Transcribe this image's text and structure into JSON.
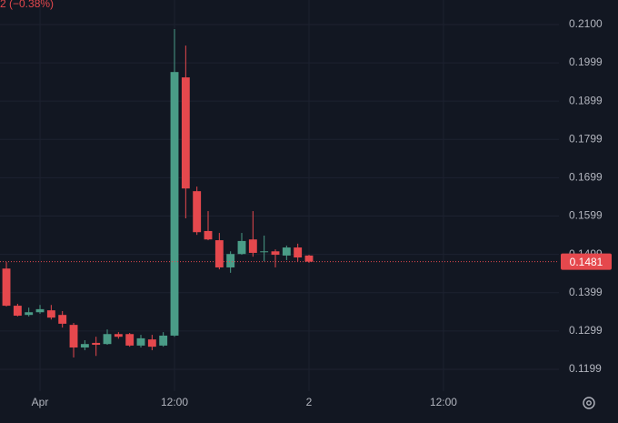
{
  "chart_data": {
    "type": "candlestick",
    "header_change": "2 (−0.38%)",
    "x": [
      -3,
      -2,
      -1,
      0,
      1,
      2,
      3,
      4,
      5,
      6,
      7,
      8,
      9,
      10,
      11,
      12,
      13,
      14,
      15,
      16,
      17,
      18,
      19,
      20,
      21,
      22,
      23,
      24
    ],
    "open": [
      0.1463,
      0.1366,
      0.1342,
      0.1349,
      0.1354,
      0.1342,
      0.1316,
      0.1257,
      0.1269,
      0.1266,
      0.1292,
      0.1292,
      0.1262,
      0.1278,
      0.1262,
      0.1288,
      0.1962,
      0.1665,
      0.1561,
      0.1537,
      0.1466,
      0.1501,
      0.1539,
      0.1506,
      0.1508,
      0.1497,
      0.1518,
      0.1497
    ],
    "high": [
      0.148,
      0.1371,
      0.1361,
      0.1368,
      0.1368,
      0.1352,
      0.1321,
      0.1276,
      0.1285,
      0.1304,
      0.1297,
      0.1295,
      0.129,
      0.129,
      0.1297,
      0.2088,
      0.2045,
      0.1677,
      0.1613,
      0.1556,
      0.1508,
      0.1556,
      0.1613,
      0.1549,
      0.1513,
      0.1523,
      0.1528,
      0.1499
    ],
    "low": [
      0.1364,
      0.1338,
      0.1338,
      0.1345,
      0.133,
      0.1309,
      0.1231,
      0.125,
      0.1235,
      0.1264,
      0.128,
      0.1259,
      0.1257,
      0.125,
      0.1259,
      0.1285,
      0.1594,
      0.1551,
      0.1537,
      0.1461,
      0.1452,
      0.1499,
      0.1494,
      0.1482,
      0.1466,
      0.1485,
      0.1482,
      0.1478
    ],
    "close": [
      0.1366,
      0.134,
      0.1349,
      0.1357,
      0.1335,
      0.1319,
      0.1257,
      0.1266,
      0.1264,
      0.1292,
      0.1285,
      0.1262,
      0.1281,
      0.1259,
      0.1288,
      0.1976,
      0.1672,
      0.1558,
      0.1539,
      0.1466,
      0.1501,
      0.1535,
      0.1504,
      0.1508,
      0.1499,
      0.1518,
      0.1492,
      0.1481
    ],
    "up_color": "#4a9c87",
    "down_color": "#e5484d",
    "current_price": 0.1481,
    "xlim": [
      -3.57,
      46.3
    ],
    "xticks": [
      {
        "value": 0,
        "label": "Apr"
      },
      {
        "value": 12,
        "label": "12:00"
      },
      {
        "value": 24,
        "label": "2"
      },
      {
        "value": 36,
        "label": "12:00"
      }
    ],
    "ylim": [
      0.1143,
      0.2164
    ],
    "yticks": [
      {
        "value": 0.12,
        "label": "0.1199"
      },
      {
        "value": 0.13,
        "label": "0.1299"
      },
      {
        "value": 0.14,
        "label": "0.1399"
      },
      {
        "value": 0.15,
        "label": "0.1499"
      },
      {
        "value": 0.16,
        "label": "0.1599"
      },
      {
        "value": 0.17,
        "label": "0.1699"
      },
      {
        "value": 0.18,
        "label": "0.1799"
      },
      {
        "value": 0.19,
        "label": "0.1899"
      },
      {
        "value": 0.2,
        "label": "0.1999"
      },
      {
        "value": 0.21,
        "label": "0.2100"
      }
    ],
    "grid": true
  }
}
